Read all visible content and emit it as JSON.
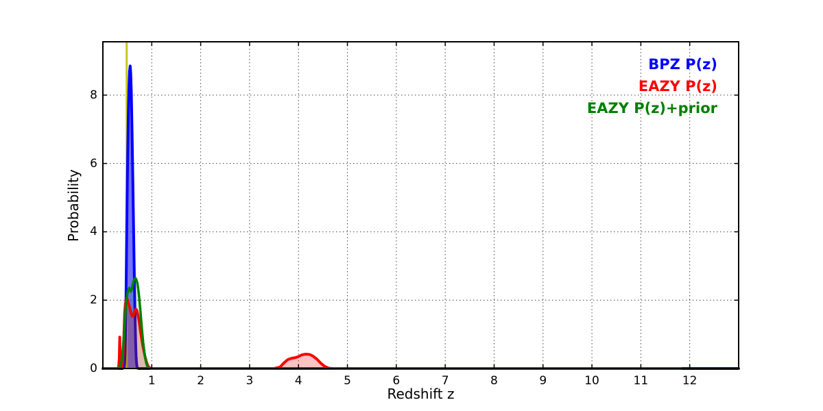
{
  "figure": {
    "background": "#ffffff"
  },
  "chart_data": {
    "type": "line",
    "title": "",
    "xlabel": "Redshift z",
    "ylabel": "Probability",
    "xlim": [
      0,
      13
    ],
    "ylim": [
      0,
      9.56
    ],
    "xticks": [
      1,
      2,
      3,
      4,
      5,
      6,
      7,
      8,
      9,
      10,
      11,
      12
    ],
    "yticks": [
      0,
      2,
      4,
      6,
      8
    ],
    "grid": {
      "on": true,
      "style": "dotted",
      "color": "#444444"
    },
    "axes_color": "#000000",
    "legend": {
      "position": "upper right",
      "frame": false
    },
    "marker_vline": {
      "x": 0.487,
      "color": "#c8c820",
      "width": 3
    },
    "series": [
      {
        "name": "BPZ P(z)",
        "color": "#0000ff",
        "fill_opacity": 0.55,
        "line_width": 4,
        "points": [
          [
            0,
            0
          ],
          [
            0.4,
            0
          ],
          [
            0.43,
            0.03
          ],
          [
            0.445,
            0.15
          ],
          [
            0.455,
            0.45
          ],
          [
            0.462,
            0.9
          ],
          [
            0.47,
            1.7
          ],
          [
            0.478,
            2.7
          ],
          [
            0.487,
            3.9
          ],
          [
            0.497,
            5.1
          ],
          [
            0.508,
            6.3
          ],
          [
            0.52,
            7.4
          ],
          [
            0.533,
            8.2
          ],
          [
            0.546,
            8.7
          ],
          [
            0.558,
            8.85
          ],
          [
            0.57,
            8.65
          ],
          [
            0.582,
            8.05
          ],
          [
            0.595,
            7.1
          ],
          [
            0.608,
            5.9
          ],
          [
            0.622,
            4.6
          ],
          [
            0.636,
            3.3
          ],
          [
            0.649,
            2.2
          ],
          [
            0.66,
            1.35
          ],
          [
            0.67,
            0.75
          ],
          [
            0.679,
            0.38
          ],
          [
            0.688,
            0.16
          ],
          [
            0.698,
            0.05
          ],
          [
            0.71,
            0.01
          ],
          [
            0.73,
            0
          ],
          [
            13,
            0
          ]
        ]
      },
      {
        "name": "EAZY P(z)",
        "color": "#ff0000",
        "fill_opacity": 0.24,
        "line_width": 4,
        "points": [
          [
            0,
            0
          ],
          [
            0.3,
            0
          ],
          [
            0.322,
            0.04
          ],
          [
            0.335,
            0.3
          ],
          [
            0.345,
            0.92
          ],
          [
            0.356,
            0.35
          ],
          [
            0.366,
            0.08
          ],
          [
            0.38,
            0.03
          ],
          [
            0.4,
            0.12
          ],
          [
            0.415,
            0.45
          ],
          [
            0.43,
            1.0
          ],
          [
            0.445,
            1.6
          ],
          [
            0.46,
            1.9
          ],
          [
            0.475,
            2.0
          ],
          [
            0.49,
            2.06
          ],
          [
            0.505,
            2.0
          ],
          [
            0.525,
            1.9
          ],
          [
            0.55,
            1.78
          ],
          [
            0.575,
            1.63
          ],
          [
            0.6,
            1.53
          ],
          [
            0.625,
            1.55
          ],
          [
            0.65,
            1.68
          ],
          [
            0.675,
            1.74
          ],
          [
            0.695,
            1.7
          ],
          [
            0.715,
            1.58
          ],
          [
            0.74,
            1.38
          ],
          [
            0.765,
            1.12
          ],
          [
            0.79,
            0.9
          ],
          [
            0.815,
            0.68
          ],
          [
            0.84,
            0.5
          ],
          [
            0.865,
            0.33
          ],
          [
            0.89,
            0.2
          ],
          [
            0.915,
            0.1
          ],
          [
            0.94,
            0.04
          ],
          [
            0.97,
            0.01
          ],
          [
            1.0,
            0
          ],
          [
            3.5,
            0
          ],
          [
            3.62,
            0.04
          ],
          [
            3.7,
            0.16
          ],
          [
            3.78,
            0.26
          ],
          [
            3.86,
            0.3
          ],
          [
            3.94,
            0.32
          ],
          [
            4.0,
            0.35
          ],
          [
            4.07,
            0.4
          ],
          [
            4.15,
            0.42
          ],
          [
            4.23,
            0.41
          ],
          [
            4.3,
            0.36
          ],
          [
            4.38,
            0.27
          ],
          [
            4.46,
            0.15
          ],
          [
            4.54,
            0.06
          ],
          [
            4.62,
            0.01
          ],
          [
            4.7,
            0
          ],
          [
            11.82,
            0
          ]
        ]
      },
      {
        "name": "EAZY P(z)+prior",
        "color": "#008000",
        "fill_opacity": 0.12,
        "line_width": 3.5,
        "points": [
          [
            0,
            0
          ],
          [
            0.3,
            0
          ],
          [
            0.33,
            0.03
          ],
          [
            0.36,
            0.1
          ],
          [
            0.385,
            0.25
          ],
          [
            0.405,
            0.5
          ],
          [
            0.425,
            0.85
          ],
          [
            0.445,
            1.3
          ],
          [
            0.465,
            1.75
          ],
          [
            0.482,
            2.0
          ],
          [
            0.5,
            2.2
          ],
          [
            0.52,
            2.3
          ],
          [
            0.54,
            2.36
          ],
          [
            0.558,
            2.3
          ],
          [
            0.572,
            2.25
          ],
          [
            0.588,
            2.3
          ],
          [
            0.605,
            2.42
          ],
          [
            0.625,
            2.54
          ],
          [
            0.645,
            2.62
          ],
          [
            0.665,
            2.65
          ],
          [
            0.685,
            2.6
          ],
          [
            0.705,
            2.5
          ],
          [
            0.725,
            2.3
          ],
          [
            0.745,
            2.05
          ],
          [
            0.765,
            1.72
          ],
          [
            0.785,
            1.38
          ],
          [
            0.805,
            1.05
          ],
          [
            0.825,
            0.76
          ],
          [
            0.845,
            0.52
          ],
          [
            0.865,
            0.32
          ],
          [
            0.885,
            0.17
          ],
          [
            0.905,
            0.08
          ],
          [
            0.925,
            0.03
          ],
          [
            0.95,
            0.01
          ],
          [
            0.98,
            0
          ],
          [
            11.82,
            0
          ]
        ]
      }
    ]
  }
}
